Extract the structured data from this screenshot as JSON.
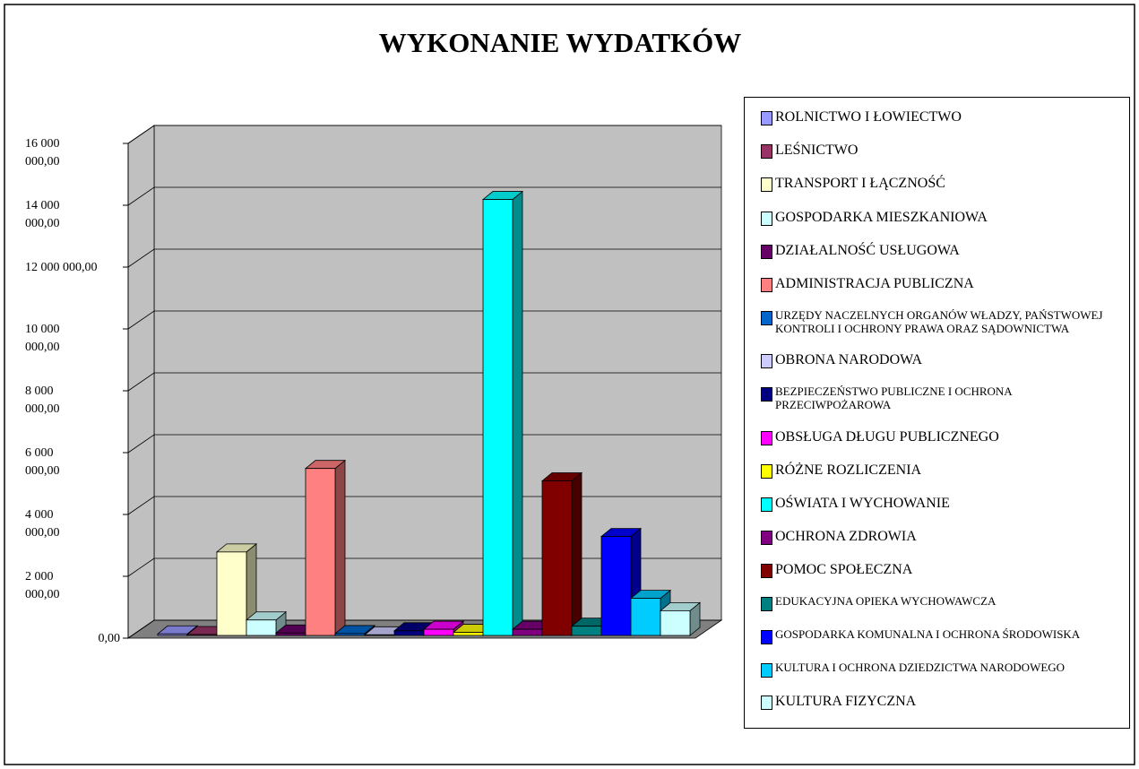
{
  "chart_data": {
    "type": "bar3d",
    "title": "WYKONANIE WYDATKÓW",
    "ylim": [
      0,
      16000000
    ],
    "yticks": [
      {
        "value": 0,
        "label": "0,00"
      },
      {
        "value": 2000000,
        "label": "2 000 000,00"
      },
      {
        "value": 4000000,
        "label": "4 000 000,00"
      },
      {
        "value": 6000000,
        "label": "6 000 000,00"
      },
      {
        "value": 8000000,
        "label": "8 000 000,00"
      },
      {
        "value": 10000000,
        "label": "10 000 000,00"
      },
      {
        "value": 12000000,
        "label": "12 000 000,00"
      },
      {
        "value": 14000000,
        "label": "14 000 000,00"
      },
      {
        "value": 16000000,
        "label": "16 000 000,00"
      }
    ],
    "grid": true,
    "series": [
      {
        "name": "ROLNICTWO I ŁOWIECTWO",
        "color": "#9999ff",
        "values": [
          50000
        ]
      },
      {
        "name": "LEŚNICTWO",
        "color": "#993366",
        "values": [
          30000
        ]
      },
      {
        "name": "TRANSPORT I ŁĄCZNOŚĆ",
        "color": "#ffffcc",
        "values": [
          2700000
        ]
      },
      {
        "name": "GOSPODARKA MIESZKANIOWA",
        "color": "#ccffff",
        "values": [
          500000
        ]
      },
      {
        "name": "DZIAŁALNOŚĆ USŁUGOWA",
        "color": "#660066",
        "values": [
          80000
        ]
      },
      {
        "name": "ADMINISTRACJA PUBLICZNA",
        "color": "#ff8080",
        "values": [
          5400000
        ]
      },
      {
        "name": "URZĘDY NACZELNYCH ORGANÓW WŁADZY, PAŃSTWOWEJ KONTROLI  I OCHRONY PRAWA ORAZ SĄDOWNICTWA",
        "color": "#0066cc",
        "values": [
          60000
        ]
      },
      {
        "name": "OBRONA NARODOWA",
        "color": "#ccccff",
        "values": [
          20000
        ]
      },
      {
        "name": "BEZPIECZEŃSTWO PUBLICZNE I OCHRONA PRZECIWPOŻAROWA",
        "color": "#000080",
        "values": [
          150000
        ]
      },
      {
        "name": "OBSŁUGA DŁUGU PUBLICZNEGO",
        "color": "#ff00ff",
        "values": [
          200000
        ]
      },
      {
        "name": "RÓŻNE ROZLICZENIA",
        "color": "#ffff00",
        "values": [
          100000
        ]
      },
      {
        "name": "OŚWIATA I WYCHOWANIE",
        "color": "#00ffff",
        "values": [
          14100000
        ]
      },
      {
        "name": "OCHRONA ZDROWIA",
        "color": "#800080",
        "values": [
          200000
        ]
      },
      {
        "name": "POMOC SPOŁECZNA",
        "color": "#800000",
        "values": [
          5000000
        ]
      },
      {
        "name": "EDUKACYJNA OPIEKA WYCHOWAWCZA",
        "color": "#008080",
        "values": [
          300000
        ]
      },
      {
        "name": "GOSPODARKA KOMUNALNA I OCHRONA ŚRODOWISKA",
        "color": "#0000ff",
        "values": [
          3200000
        ]
      },
      {
        "name": "KULTURA I OCHRONA DZIEDZICTWA NARODOWEGO",
        "color": "#00ccff",
        "values": [
          1200000
        ]
      },
      {
        "name": "KULTURA FIZYCZNA",
        "color": "#ccffff",
        "values": [
          800000
        ]
      }
    ]
  }
}
